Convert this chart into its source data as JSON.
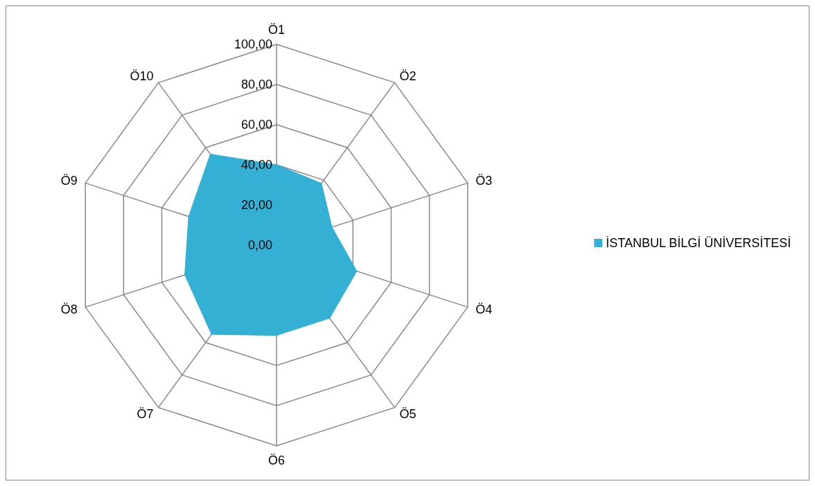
{
  "chart_data": {
    "type": "radar",
    "categories": [
      "Ö1",
      "Ö2",
      "Ö3",
      "Ö4",
      "Ö5",
      "Ö6",
      "Ö7",
      "Ö8",
      "Ö9",
      "Ö10"
    ],
    "series": [
      {
        "name": "İSTANBUL BİLGİ ÜNİVERSİTESİ",
        "color": "#34b0d4",
        "values": [
          40,
          38,
          29,
          42,
          45,
          45,
          55,
          48,
          46,
          56
        ]
      }
    ],
    "ylim": [
      0,
      100
    ],
    "yticks": [
      {
        "value": 0,
        "label": "0,00"
      },
      {
        "value": 20,
        "label": "20,00"
      },
      {
        "value": 40,
        "label": "40,00"
      },
      {
        "value": 60,
        "label": "60,00"
      },
      {
        "value": 80,
        "label": "80,00"
      },
      {
        "value": 100,
        "label": "100,00"
      }
    ],
    "legend": "right"
  }
}
